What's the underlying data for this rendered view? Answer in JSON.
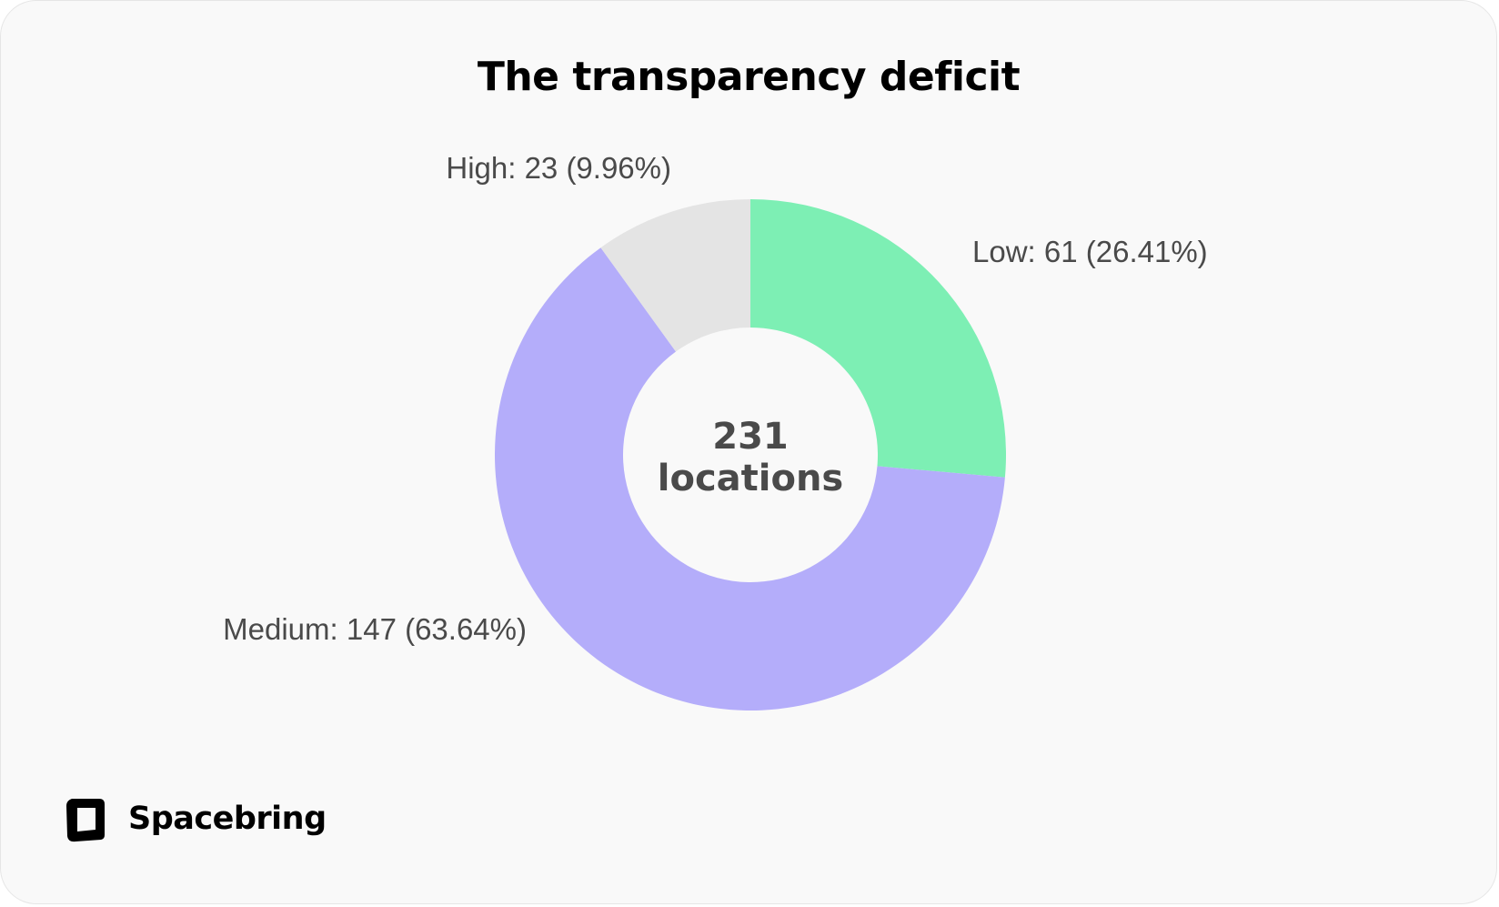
{
  "chart_data": {
    "type": "pie",
    "title": "The transparency deficit",
    "center_label": {
      "value": "231",
      "unit": "locations"
    },
    "slices": [
      {
        "name": "Low",
        "value": 61,
        "percent": "26.41%",
        "label": "Low: 61 (26.41%)",
        "color": "#7DEFB4"
      },
      {
        "name": "Medium",
        "value": 147,
        "percent": "63.64%",
        "label": "Medium: 147 (63.64%)",
        "color": "#B4ADFA"
      },
      {
        "name": "High",
        "value": 23,
        "percent": "9.96%",
        "label": "High: 23 (9.96%)",
        "color": "#E4E4E4"
      }
    ],
    "donut": true
  },
  "brand": {
    "name": "Spacebring",
    "logo_icon": "spacebring-logo-icon"
  }
}
